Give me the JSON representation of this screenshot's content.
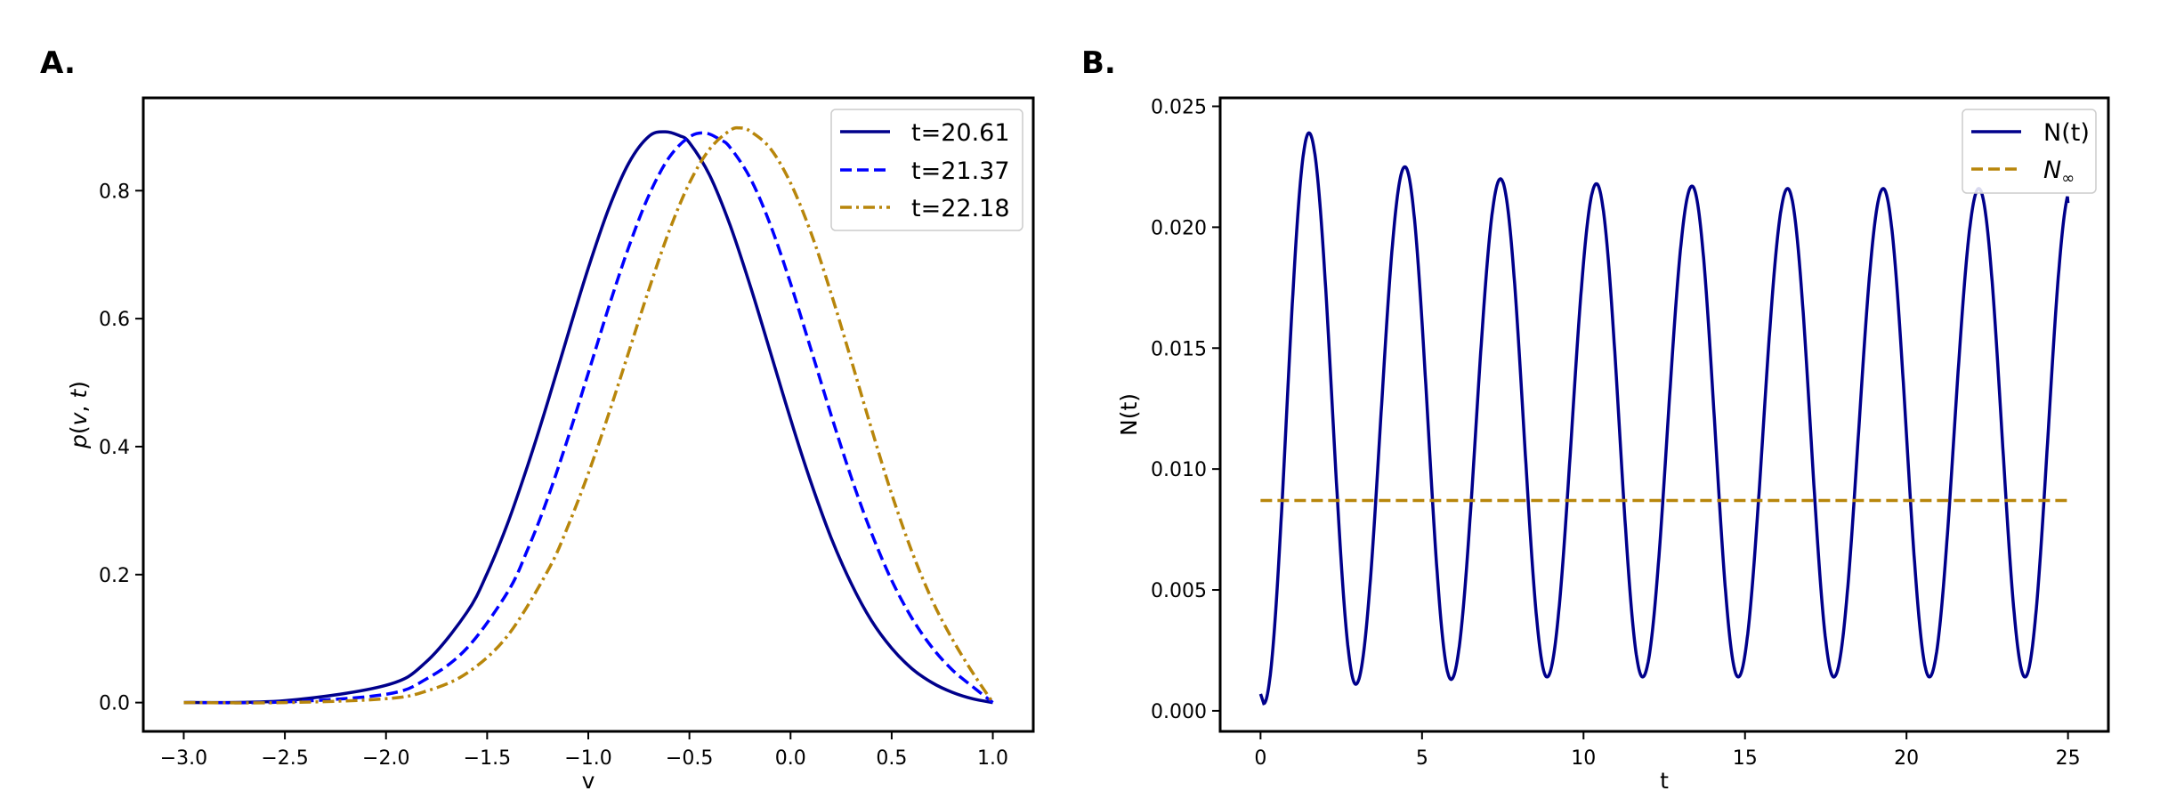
{
  "chart_data": [
    {
      "panel_label": "A.",
      "type": "line",
      "xlabel": "v",
      "ylabel_parts": [
        "p",
        "(",
        "v",
        ", ",
        "t",
        ")"
      ],
      "xlim": [
        -3.2,
        1.2
      ],
      "ylim": [
        -0.045,
        0.945
      ],
      "xticks": [
        -3.0,
        -2.5,
        -2.0,
        -1.5,
        -1.0,
        -0.5,
        0.0,
        0.5,
        1.0
      ],
      "xtick_labels": [
        "−3.0",
        "−2.5",
        "−2.0",
        "−1.5",
        "−1.0",
        "−0.5",
        "0.0",
        "0.5",
        "1.0"
      ],
      "yticks": [
        0.0,
        0.2,
        0.4,
        0.6,
        0.8
      ],
      "ytick_labels": [
        "0.0",
        "0.2",
        "0.4",
        "0.6",
        "0.8"
      ],
      "legend_position": "top-right",
      "series": [
        {
          "name": "t=20.61",
          "color": "#00008b",
          "dash": "solid",
          "x": [
            -3.0,
            -2.5,
            -2.0,
            -1.8,
            -1.6,
            -1.5,
            -1.4,
            -1.3,
            -1.2,
            -1.1,
            -1.0,
            -0.9,
            -0.8,
            -0.7,
            -0.62,
            -0.55,
            -0.5,
            -0.4,
            -0.3,
            -0.2,
            -0.1,
            0.0,
            0.1,
            0.2,
            0.3,
            0.4,
            0.5,
            0.6,
            0.7,
            0.8,
            0.9,
            1.0
          ],
          "y": [
            0.0,
            0.003,
            0.027,
            0.064,
            0.141,
            0.202,
            0.279,
            0.37,
            0.47,
            0.576,
            0.679,
            0.771,
            0.843,
            0.885,
            0.892,
            0.886,
            0.875,
            0.824,
            0.747,
            0.652,
            0.548,
            0.443,
            0.345,
            0.258,
            0.186,
            0.128,
            0.085,
            0.053,
            0.031,
            0.016,
            0.006,
            0.0
          ]
        },
        {
          "name": "t=21.37",
          "color": "#0000ff",
          "dash": "dashed",
          "x": [
            -3.0,
            -2.5,
            -2.0,
            -1.8,
            -1.6,
            -1.4,
            -1.3,
            -1.2,
            -1.1,
            -1.0,
            -0.9,
            -0.8,
            -0.7,
            -0.6,
            -0.5,
            -0.42,
            -0.35,
            -0.3,
            -0.2,
            -0.1,
            0.0,
            0.1,
            0.2,
            0.3,
            0.4,
            0.5,
            0.6,
            0.7,
            0.8,
            0.9,
            1.0
          ],
          "y": [
            0.0,
            0.001,
            0.013,
            0.037,
            0.085,
            0.172,
            0.239,
            0.32,
            0.414,
            0.515,
            0.617,
            0.712,
            0.793,
            0.852,
            0.884,
            0.89,
            0.88,
            0.868,
            0.82,
            0.747,
            0.655,
            0.553,
            0.45,
            0.352,
            0.265,
            0.191,
            0.132,
            0.086,
            0.051,
            0.025,
            0.0
          ]
        },
        {
          "name": "t=22.18",
          "color": "#b8860b",
          "dash": "dashdot",
          "x": [
            -3.0,
            -2.5,
            -2.0,
            -1.8,
            -1.6,
            -1.4,
            -1.2,
            -1.1,
            -1.0,
            -0.9,
            -0.8,
            -0.7,
            -0.6,
            -0.5,
            -0.4,
            -0.3,
            -0.25,
            -0.2,
            -0.1,
            0.0,
            0.1,
            0.2,
            0.3,
            0.4,
            0.5,
            0.6,
            0.7,
            0.8,
            0.9,
            1.0
          ],
          "y": [
            0.0,
            0.0,
            0.006,
            0.018,
            0.046,
            0.104,
            0.206,
            0.276,
            0.358,
            0.45,
            0.548,
            0.646,
            0.737,
            0.812,
            0.865,
            0.894,
            0.898,
            0.893,
            0.866,
            0.812,
            0.735,
            0.64,
            0.535,
            0.428,
            0.326,
            0.236,
            0.16,
            0.099,
            0.047,
            0.0
          ]
        }
      ]
    },
    {
      "panel_label": "B.",
      "type": "line",
      "xlabel": "t",
      "ylabel": "N(t)",
      "xlim": [
        -1.25,
        26.25
      ],
      "ylim": [
        -0.00085,
        0.02535
      ],
      "xticks": [
        0,
        5,
        10,
        15,
        20,
        25
      ],
      "xtick_labels": [
        "0",
        "5",
        "10",
        "15",
        "20",
        "25"
      ],
      "yticks": [
        0.0,
        0.005,
        0.01,
        0.015,
        0.02,
        0.025
      ],
      "ytick_labels": [
        "0.000",
        "0.005",
        "0.010",
        "0.015",
        "0.020",
        "0.025"
      ],
      "legend_position": "top-right",
      "series": [
        {
          "name": "N(t)",
          "color": "#00008b",
          "dash": "solid",
          "peaks_t": [
            1.5,
            4.47,
            7.43,
            10.4,
            13.36,
            16.32,
            19.28,
            22.24
          ],
          "peaks_value": [
            0.0239,
            0.0225,
            0.022,
            0.0218,
            0.0217,
            0.0216,
            0.0216,
            0.0216
          ],
          "troughs_t": [
            0.1,
            2.95,
            5.9,
            8.87,
            11.83,
            14.79,
            17.75,
            20.71,
            23.67
          ],
          "troughs_value": [
            0.0003,
            0.0011,
            0.0013,
            0.0014,
            0.0014,
            0.0014,
            0.0014,
            0.0014,
            0.0014
          ],
          "t_start": 0,
          "t_end": 25,
          "value_start": 0.0007,
          "value_end": 0.021
        },
        {
          "name": "N∞",
          "name_main": "N",
          "name_sub": "∞",
          "color": "#b8860b",
          "dash": "dashed",
          "x": [
            0,
            25
          ],
          "y": [
            0.0087,
            0.0087
          ]
        }
      ]
    }
  ]
}
